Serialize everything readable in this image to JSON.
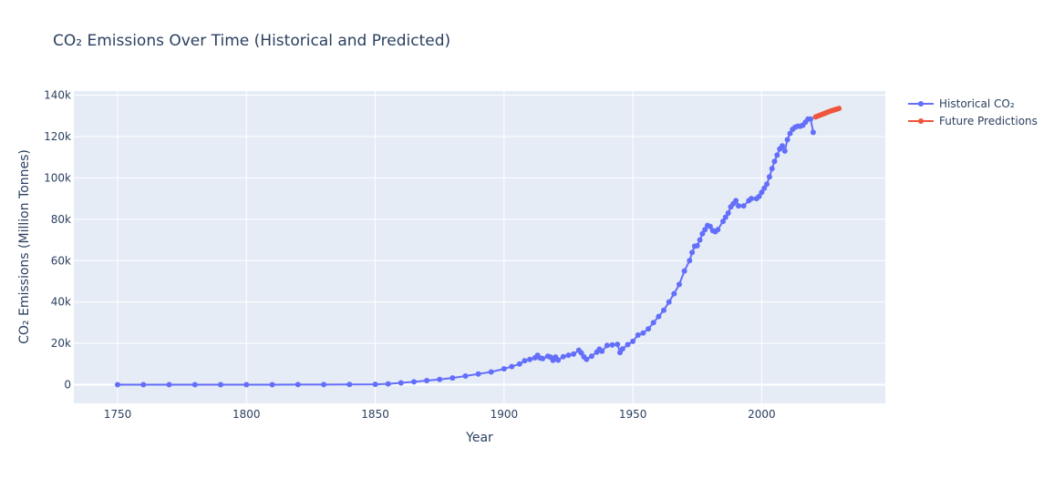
{
  "chart_data": {
    "type": "line",
    "title": "CO₂ Emissions Over Time (Historical and Predicted)",
    "xlabel": "Year",
    "ylabel": "CO₂ Emissions (Million Tonnes)",
    "xlim": [
      1733,
      2048
    ],
    "ylim": [
      -9000,
      142000
    ],
    "x_ticks": [
      1750,
      1800,
      1850,
      1900,
      1950,
      2000
    ],
    "y_ticks": [
      0,
      20000,
      40000,
      60000,
      80000,
      100000,
      120000,
      140000
    ],
    "y_tick_labels": [
      "0",
      "20k",
      "40k",
      "60k",
      "80k",
      "100k",
      "120k",
      "140k"
    ],
    "grid": true,
    "legend_position": "top-right outside plot",
    "background_color": "#e5ecf6",
    "series": [
      {
        "name": "Historical CO₂",
        "color": "#636efa",
        "mode": "lines+markers",
        "points": [
          [
            1750,
            9
          ],
          [
            1760,
            10
          ],
          [
            1770,
            11
          ],
          [
            1780,
            13
          ],
          [
            1790,
            20
          ],
          [
            1800,
            28
          ],
          [
            1810,
            38
          ],
          [
            1820,
            55
          ],
          [
            1830,
            90
          ],
          [
            1840,
            150
          ],
          [
            1850,
            200
          ],
          [
            1855,
            400
          ],
          [
            1860,
            900
          ],
          [
            1865,
            1400
          ],
          [
            1870,
            2000
          ],
          [
            1875,
            2600
          ],
          [
            1880,
            3300
          ],
          [
            1885,
            4200
          ],
          [
            1890,
            5200
          ],
          [
            1895,
            6200
          ],
          [
            1900,
            7700
          ],
          [
            1903,
            8800
          ],
          [
            1906,
            10000
          ],
          [
            1908,
            11600
          ],
          [
            1910,
            12200
          ],
          [
            1912,
            13000
          ],
          [
            1913,
            14200
          ],
          [
            1914,
            12900
          ],
          [
            1915,
            12600
          ],
          [
            1917,
            13800
          ],
          [
            1918,
            13300
          ],
          [
            1919,
            11800
          ],
          [
            1920,
            13400
          ],
          [
            1921,
            11900
          ],
          [
            1923,
            13600
          ],
          [
            1925,
            14300
          ],
          [
            1927,
            14800
          ],
          [
            1929,
            16600
          ],
          [
            1930,
            15400
          ],
          [
            1931,
            13500
          ],
          [
            1932,
            12300
          ],
          [
            1934,
            13800
          ],
          [
            1936,
            15800
          ],
          [
            1937,
            17200
          ],
          [
            1938,
            16200
          ],
          [
            1940,
            19000
          ],
          [
            1942,
            19200
          ],
          [
            1944,
            19500
          ],
          [
            1945,
            15500
          ],
          [
            1946,
            17300
          ],
          [
            1948,
            19400
          ],
          [
            1950,
            21000
          ],
          [
            1952,
            24000
          ],
          [
            1954,
            25000
          ],
          [
            1956,
            27000
          ],
          [
            1958,
            30000
          ],
          [
            1960,
            33000
          ],
          [
            1962,
            36000
          ],
          [
            1964,
            40000
          ],
          [
            1966,
            44000
          ],
          [
            1968,
            48500
          ],
          [
            1970,
            55000
          ],
          [
            1972,
            60000
          ],
          [
            1973,
            64000
          ],
          [
            1974,
            67000
          ],
          [
            1975,
            67200
          ],
          [
            1976,
            70000
          ],
          [
            1977,
            73000
          ],
          [
            1978,
            75000
          ],
          [
            1979,
            77000
          ],
          [
            1980,
            76500
          ],
          [
            1981,
            74500
          ],
          [
            1982,
            74000
          ],
          [
            1983,
            75000
          ],
          [
            1985,
            79000
          ],
          [
            1986,
            81000
          ],
          [
            1987,
            83000
          ],
          [
            1988,
            86000
          ],
          [
            1989,
            87500
          ],
          [
            1990,
            89000
          ],
          [
            1991,
            86500
          ],
          [
            1993,
            86500
          ],
          [
            1995,
            89000
          ],
          [
            1996,
            90000
          ],
          [
            1998,
            90000
          ],
          [
            1999,
            91000
          ],
          [
            2000,
            93000
          ],
          [
            2001,
            95000
          ],
          [
            2002,
            97000
          ],
          [
            2003,
            100500
          ],
          [
            2004,
            104500
          ],
          [
            2005,
            108000
          ],
          [
            2006,
            111000
          ],
          [
            2007,
            114000
          ],
          [
            2008,
            115500
          ],
          [
            2009,
            113000
          ],
          [
            2010,
            118500
          ],
          [
            2011,
            121500
          ],
          [
            2012,
            123500
          ],
          [
            2013,
            124500
          ],
          [
            2014,
            125000
          ],
          [
            2015,
            125000
          ],
          [
            2016,
            125500
          ],
          [
            2017,
            127000
          ],
          [
            2018,
            128500
          ],
          [
            2019,
            128500
          ],
          [
            2020,
            122000
          ]
        ]
      },
      {
        "name": "Future Predictions",
        "color": "#ef553b",
        "mode": "lines+markers",
        "points": [
          [
            2021,
            129500
          ],
          [
            2022,
            130000
          ],
          [
            2023,
            130500
          ],
          [
            2024,
            131000
          ],
          [
            2025,
            131500
          ],
          [
            2026,
            132000
          ],
          [
            2027,
            132400
          ],
          [
            2028,
            132800
          ],
          [
            2029,
            133200
          ],
          [
            2030,
            133600
          ]
        ]
      }
    ]
  }
}
